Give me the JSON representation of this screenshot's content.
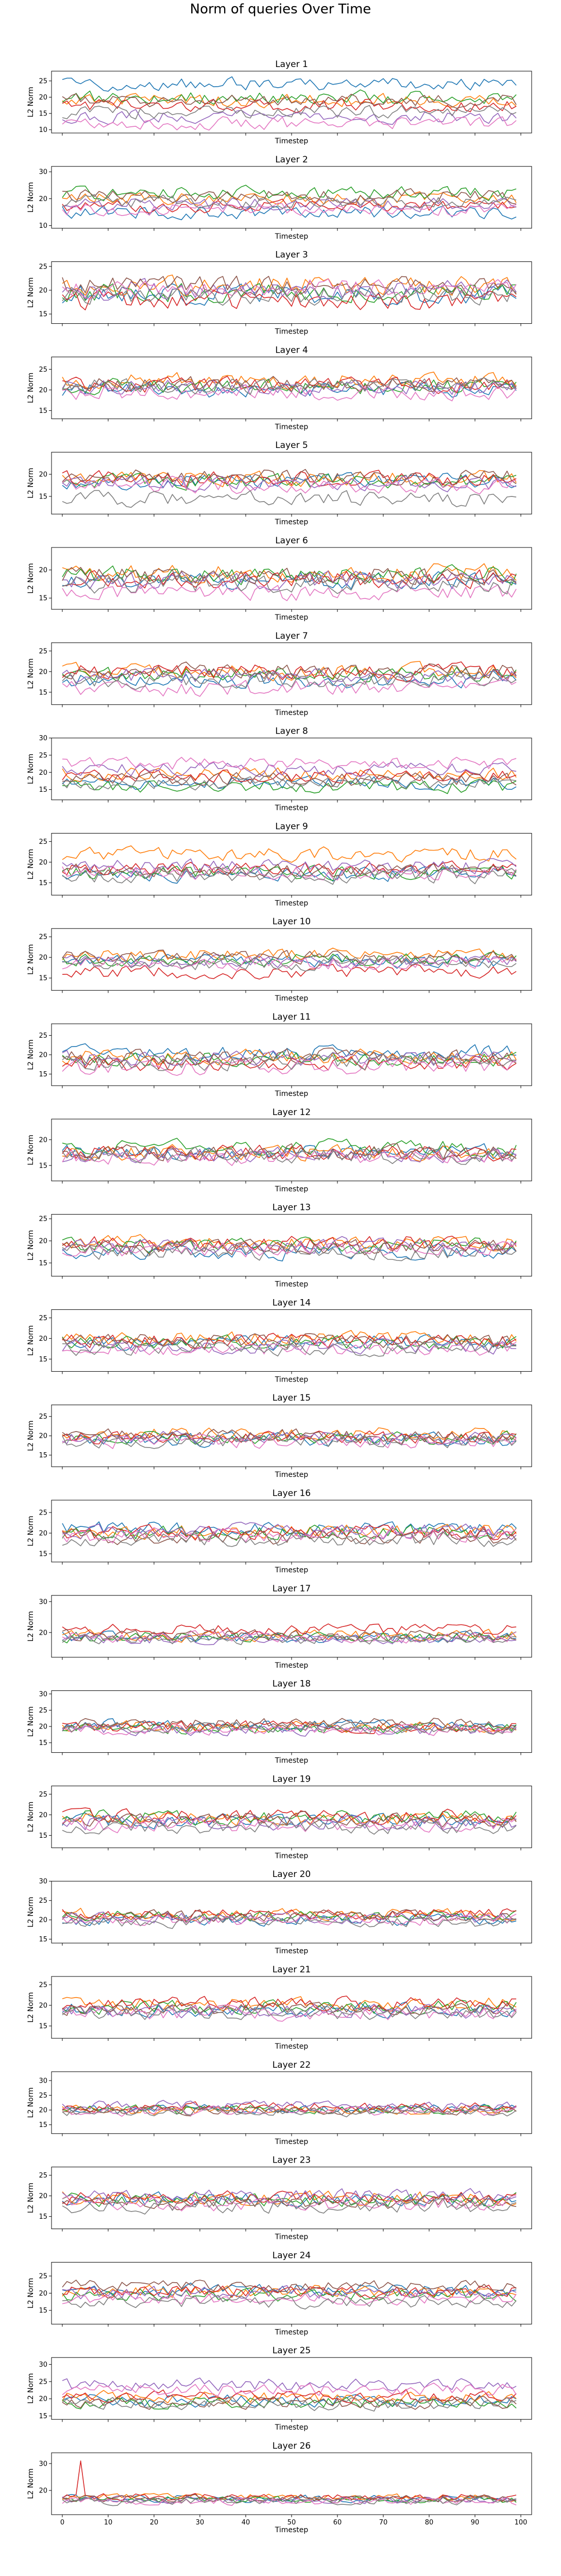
{
  "figure": {
    "title": "Norm of queries Over Time"
  },
  "chart_data": {
    "type": "line",
    "series_colors": [
      "#1f77b4",
      "#ff7f0e",
      "#2ca02c",
      "#d62728",
      "#9467bd",
      "#8c564b",
      "#e377c2",
      "#7f7f7f"
    ],
    "x_range": [
      0,
      100
    ],
    "series_length": 100,
    "x_ticks": [
      0,
      10,
      20,
      30,
      40,
      50,
      60,
      70,
      80,
      90,
      100
    ],
    "subplots": [
      {
        "title": "Layer 1",
        "xlabel": "Timestep",
        "ylabel": "L2 Norm",
        "ylim": [
          9,
          28
        ],
        "yticks": [
          10,
          15,
          20,
          25
        ],
        "series_mean": [
          24,
          19,
          20,
          17.5,
          14,
          19,
          12,
          15.5
        ],
        "spread": 1.8,
        "show_xtick_labels": false
      },
      {
        "title": "Layer 2",
        "xlabel": "Timestep",
        "ylabel": "L2 Norm",
        "ylim": [
          9,
          32
        ],
        "yticks": [
          10,
          20,
          30
        ],
        "series_mean": [
          15,
          20,
          22,
          17,
          18,
          21,
          16,
          19
        ],
        "spread": 2.2,
        "show_xtick_labels": false
      },
      {
        "title": "Layer 3",
        "xlabel": "Timestep",
        "ylabel": "L2 Norm",
        "ylim": [
          13,
          26
        ],
        "yticks": [
          15,
          20,
          25
        ],
        "series_mean": [
          19,
          21,
          19.5,
          18,
          20,
          21,
          20.5,
          19
        ],
        "spread": 1.8,
        "show_xtick_labels": false
      },
      {
        "title": "Layer 4",
        "xlabel": "Timestep",
        "ylabel": "L2 Norm",
        "ylim": [
          13,
          28
        ],
        "yticks": [
          15,
          20,
          25
        ],
        "series_mean": [
          20,
          22.5,
          21,
          21,
          20.5,
          21.5,
          19.5,
          21
        ],
        "spread": 1.7,
        "show_xtick_labels": false
      },
      {
        "title": "Layer 5",
        "xlabel": "Timestep",
        "ylabel": "L2 Norm",
        "ylim": [
          11,
          25
        ],
        "yticks": [
          15,
          20
        ],
        "series_mean": [
          18.5,
          19,
          18.5,
          19,
          18,
          19.5,
          17.5,
          14.5
        ],
        "spread": 1.5,
        "show_xtick_labels": false
      },
      {
        "title": "Layer 6",
        "xlabel": "Timestep",
        "ylabel": "L2 Norm",
        "ylim": [
          13,
          24
        ],
        "yticks": [
          15,
          20
        ],
        "series_mean": [
          18,
          19.5,
          19,
          18.5,
          18,
          19,
          16,
          17.5
        ],
        "spread": 1.4,
        "show_xtick_labels": false
      },
      {
        "title": "Layer 7",
        "xlabel": "Timestep",
        "ylabel": "L2 Norm",
        "ylim": [
          12,
          27
        ],
        "yticks": [
          15,
          20,
          25
        ],
        "series_mean": [
          18,
          20,
          19.5,
          20,
          19,
          20,
          16,
          18
        ],
        "spread": 1.7,
        "show_xtick_labels": false
      },
      {
        "title": "Layer 8",
        "xlabel": "Timestep",
        "ylabel": "L2 Norm",
        "ylim": [
          12,
          30
        ],
        "yticks": [
          15,
          20,
          25,
          30
        ],
        "series_mean": [
          17,
          19.5,
          16,
          19,
          21,
          18,
          22.5,
          17
        ],
        "spread": 1.7,
        "show_xtick_labels": false
      },
      {
        "title": "Layer 9",
        "xlabel": "Timestep",
        "ylabel": "L2 Norm",
        "ylim": [
          12,
          27
        ],
        "yticks": [
          15,
          20,
          25
        ],
        "series_mean": [
          17,
          22,
          17.5,
          18.5,
          19,
          18,
          17.5,
          16.5
        ],
        "spread": 1.5,
        "show_xtick_labels": false
      },
      {
        "title": "Layer 10",
        "xlabel": "Timestep",
        "ylabel": "L2 Norm",
        "ylim": [
          12,
          27
        ],
        "yticks": [
          15,
          20,
          25
        ],
        "series_mean": [
          19,
          20.5,
          19.5,
          16.5,
          19,
          20,
          18.5,
          18.5
        ],
        "spread": 1.4,
        "show_xtick_labels": false
      },
      {
        "title": "Layer 11",
        "xlabel": "Timestep",
        "ylabel": "L2 Norm",
        "ylim": [
          12,
          28
        ],
        "yticks": [
          15,
          20,
          25
        ],
        "series_mean": [
          20.5,
          19.5,
          19,
          17.5,
          19,
          19.5,
          17,
          18
        ],
        "spread": 1.7,
        "show_xtick_labels": false
      },
      {
        "title": "Layer 12",
        "xlabel": "Timestep",
        "ylabel": "L2 Norm",
        "ylim": [
          12,
          24
        ],
        "yticks": [
          15,
          20
        ],
        "series_mean": [
          17.5,
          17.5,
          18.5,
          17.5,
          17,
          17.5,
          16.5,
          17
        ],
        "spread": 1.3,
        "show_xtick_labels": false
      },
      {
        "title": "Layer 13",
        "xlabel": "Timestep",
        "ylabel": "L2 Norm",
        "ylim": [
          12,
          26
        ],
        "yticks": [
          15,
          20,
          25
        ],
        "series_mean": [
          17.5,
          19.5,
          19,
          19.5,
          19,
          18.5,
          18,
          17.5
        ],
        "spread": 1.5,
        "show_xtick_labels": false
      },
      {
        "title": "Layer 14",
        "xlabel": "Timestep",
        "ylabel": "L2 Norm",
        "ylim": [
          12,
          27
        ],
        "yticks": [
          15,
          20,
          25
        ],
        "series_mean": [
          19,
          20,
          19,
          19.5,
          18,
          19.5,
          17.5,
          17.5
        ],
        "spread": 1.5,
        "show_xtick_labels": false
      },
      {
        "title": "Layer 15",
        "xlabel": "Timestep",
        "ylabel": "L2 Norm",
        "ylim": [
          12,
          28
        ],
        "yticks": [
          15,
          20,
          25
        ],
        "series_mean": [
          19,
          20.5,
          19.5,
          19.5,
          19.5,
          20,
          18.5,
          18.5
        ],
        "spread": 1.5,
        "show_xtick_labels": false
      },
      {
        "title": "Layer 16",
        "xlabel": "Timestep",
        "ylabel": "L2 Norm",
        "ylim": [
          13,
          28
        ],
        "yticks": [
          15,
          20,
          25
        ],
        "series_mean": [
          21,
          20.5,
          20,
          20,
          20.5,
          19,
          19.5,
          18.5
        ],
        "spread": 1.6,
        "show_xtick_labels": false
      },
      {
        "title": "Layer 17",
        "xlabel": "Timestep",
        "ylabel": "L2 Norm",
        "ylim": [
          12,
          32
        ],
        "yticks": [
          20,
          30
        ],
        "series_mean": [
          18.5,
          19,
          18.5,
          21,
          18,
          19,
          18.5,
          18
        ],
        "spread": 1.6,
        "show_xtick_labels": false
      },
      {
        "title": "Layer 18",
        "xlabel": "Timestep",
        "ylabel": "L2 Norm",
        "ylim": [
          12,
          31
        ],
        "yticks": [
          15,
          20,
          25,
          30
        ],
        "series_mean": [
          20.5,
          20,
          19.5,
          20,
          19,
          21,
          19,
          19.5
        ],
        "spread": 1.5,
        "show_xtick_labels": false
      },
      {
        "title": "Layer 19",
        "xlabel": "Timestep",
        "ylabel": "L2 Norm",
        "ylim": [
          12,
          27
        ],
        "yticks": [
          15,
          20,
          25
        ],
        "series_mean": [
          18.5,
          19,
          19.5,
          19.5,
          18,
          19,
          17.5,
          17
        ],
        "spread": 1.5,
        "show_xtick_labels": false
      },
      {
        "title": "Layer 20",
        "xlabel": "Timestep",
        "ylabel": "L2 Norm",
        "ylim": [
          14,
          30
        ],
        "yticks": [
          15,
          20,
          25,
          30
        ],
        "series_mean": [
          20,
          21.5,
          21,
          21.5,
          20.5,
          21,
          20,
          19.5
        ],
        "spread": 1.3,
        "show_xtick_labels": false
      },
      {
        "title": "Layer 21",
        "xlabel": "Timestep",
        "ylabel": "L2 Norm",
        "ylim": [
          12,
          27
        ],
        "yticks": [
          15,
          20,
          25
        ],
        "series_mean": [
          19,
          20.5,
          19.5,
          20.5,
          18.5,
          19,
          18,
          18
        ],
        "spread": 1.5,
        "show_xtick_labels": false
      },
      {
        "title": "Layer 22",
        "xlabel": "Timestep",
        "ylabel": "L2 Norm",
        "ylim": [
          12,
          33
        ],
        "yticks": [
          15,
          20,
          25,
          30
        ],
        "series_mean": [
          20.5,
          20,
          20,
          21,
          21.5,
          20,
          19.5,
          19.5
        ],
        "spread": 1.4,
        "show_xtick_labels": false
      },
      {
        "title": "Layer 23",
        "xlabel": "Timestep",
        "ylabel": "L2 Norm",
        "ylim": [
          12,
          27
        ],
        "yticks": [
          15,
          20,
          25
        ],
        "series_mean": [
          19,
          19.5,
          19,
          19.5,
          20,
          18.5,
          18,
          17.5
        ],
        "spread": 1.5,
        "show_xtick_labels": false
      },
      {
        "title": "Layer 24",
        "xlabel": "Timestep",
        "ylabel": "L2 Norm",
        "ylim": [
          11,
          29
        ],
        "yticks": [
          15,
          20,
          25
        ],
        "series_mean": [
          21,
          20.5,
          19.5,
          20.5,
          20,
          22,
          18.5,
          17.5
        ],
        "spread": 1.6,
        "show_xtick_labels": false
      },
      {
        "title": "Layer 25",
        "xlabel": "Timestep",
        "ylabel": "L2 Norm",
        "ylim": [
          14,
          32
        ],
        "yticks": [
          15,
          20,
          25,
          30
        ],
        "series_mean": [
          19.5,
          20.5,
          19,
          21,
          24,
          19,
          22.5,
          18.5
        ],
        "spread": 1.6,
        "show_xtick_labels": false
      },
      {
        "title": "Layer 26",
        "xlabel": "Timestep",
        "ylabel": "L2 Norm",
        "ylim": [
          11,
          34
        ],
        "yticks": [
          20,
          30
        ],
        "series_mean": [
          17,
          17.5,
          16.5,
          17.5,
          16.5,
          17,
          16,
          16
        ],
        "spread": 1.2,
        "spike_t": 4,
        "spike_value": 31,
        "show_xtick_labels": true
      }
    ]
  }
}
